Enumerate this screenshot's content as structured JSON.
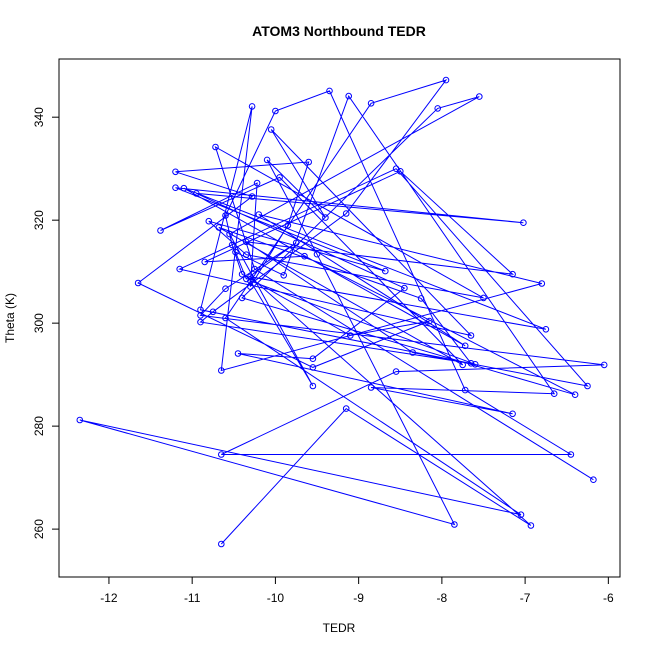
{
  "chart_data": {
    "type": "scatter",
    "title": "ATOM3 Northbound TEDR",
    "xlabel": "TEDR",
    "ylabel": "Theta (K)",
    "xlim": [
      -12.6,
      -5.86
    ],
    "ylim": [
      250.7,
      351.3
    ],
    "xticks": [
      -12,
      -11,
      -10,
      -9,
      -8,
      -7,
      -6
    ],
    "yticks": [
      260,
      280,
      300,
      320,
      340
    ],
    "grid": false,
    "connected": true,
    "marker": "open-circle",
    "color": "#0000ff",
    "points": [
      [
        -10.65,
        257.1
      ],
      [
        -9.15,
        283.4
      ],
      [
        -6.93,
        260.7
      ],
      [
        -10.3,
        309.0
      ],
      [
        -6.75,
        298.8
      ],
      [
        -11.1,
        326.2
      ],
      [
        -7.72,
        295.6
      ],
      [
        -10.2,
        321.1
      ],
      [
        -6.8,
        307.7
      ],
      [
        -10.65,
        290.8
      ],
      [
        -10.28,
        342.1
      ],
      [
        -10.9,
        302.6
      ],
      [
        -7.6,
        292.0
      ],
      [
        -10.3,
        308.2
      ],
      [
        -9.55,
        287.8
      ],
      [
        -10.55,
        317.3
      ],
      [
        -7.55,
        344.0
      ],
      [
        -8.05,
        341.7
      ],
      [
        -10.4,
        304.9
      ],
      [
        -6.4,
        286.1
      ],
      [
        -9.65,
        313.0
      ],
      [
        -10.85,
        311.9
      ],
      [
        -8.5,
        329.5
      ],
      [
        -7.15,
        309.5
      ],
      [
        -10.35,
        315.8
      ],
      [
        -8.35,
        294.3
      ],
      [
        -6.25,
        287.8
      ],
      [
        -8.55,
        330.0
      ],
      [
        -11.15,
        310.5
      ],
      [
        -7.65,
        297.6
      ],
      [
        -10.05,
        337.6
      ],
      [
        -9.4,
        320.5
      ],
      [
        -10.1,
        331.7
      ],
      [
        -9.5,
        313.4
      ],
      [
        -7.85,
        260.9
      ],
      [
        -12.35,
        281.2
      ],
      [
        -7.05,
        262.8
      ],
      [
        -10.6,
        301.0
      ],
      [
        -8.85,
        342.7
      ],
      [
        -7.95,
        347.2
      ],
      [
        -9.15,
        321.3
      ],
      [
        -10.75,
        302.2
      ],
      [
        -10.9,
        300.2
      ],
      [
        -7.65,
        292.2
      ],
      [
        -8.25,
        304.8
      ],
      [
        -10.68,
        318.6
      ],
      [
        -7.75,
        291.9
      ],
      [
        -9.95,
        328.3
      ],
      [
        -11.38,
        318.0
      ],
      [
        -10.22,
        327.2
      ],
      [
        -10.3,
        307.1
      ],
      [
        -9.85,
        319.0
      ],
      [
        -9.6,
        331.3
      ],
      [
        -11.2,
        329.4
      ],
      [
        -10.28,
        324.6
      ],
      [
        -11.65,
        307.8
      ],
      [
        -9.55,
        291.4
      ],
      [
        -8.15,
        300.4
      ],
      [
        -9.1,
        297.6
      ],
      [
        -10.4,
        309.5
      ],
      [
        -10.52,
        315.2
      ],
      [
        -10.6,
        320.9
      ],
      [
        -10.0,
        341.2
      ],
      [
        -9.35,
        345.1
      ],
      [
        -7.72,
        287.0
      ],
      [
        -6.45,
        274.5
      ],
      [
        -10.65,
        274.5
      ],
      [
        -8.55,
        290.6
      ],
      [
        -6.05,
        291.9
      ],
      [
        -10.9,
        301.5
      ],
      [
        -10.6,
        306.7
      ],
      [
        -9.75,
        315.6
      ],
      [
        -10.35,
        308.6
      ],
      [
        -10.48,
        313.8
      ],
      [
        -9.9,
        309.3
      ],
      [
        -9.12,
        344.1
      ],
      [
        -6.65,
        286.3
      ],
      [
        -8.85,
        287.5
      ],
      [
        -7.15,
        282.4
      ],
      [
        -10.45,
        294.1
      ],
      [
        -9.55,
        293.1
      ],
      [
        -8.45,
        306.8
      ],
      [
        -10.95,
        325.2
      ],
      [
        -7.02,
        319.5
      ],
      [
        -11.2,
        326.3
      ],
      [
        -8.68,
        310.1
      ],
      [
        -10.8,
        319.8
      ],
      [
        -10.35,
        313.3
      ],
      [
        -7.5,
        304.9
      ],
      [
        -10.72,
        334.2
      ],
      [
        -10.25,
        310.5
      ],
      [
        -6.18,
        269.6
      ]
    ]
  }
}
